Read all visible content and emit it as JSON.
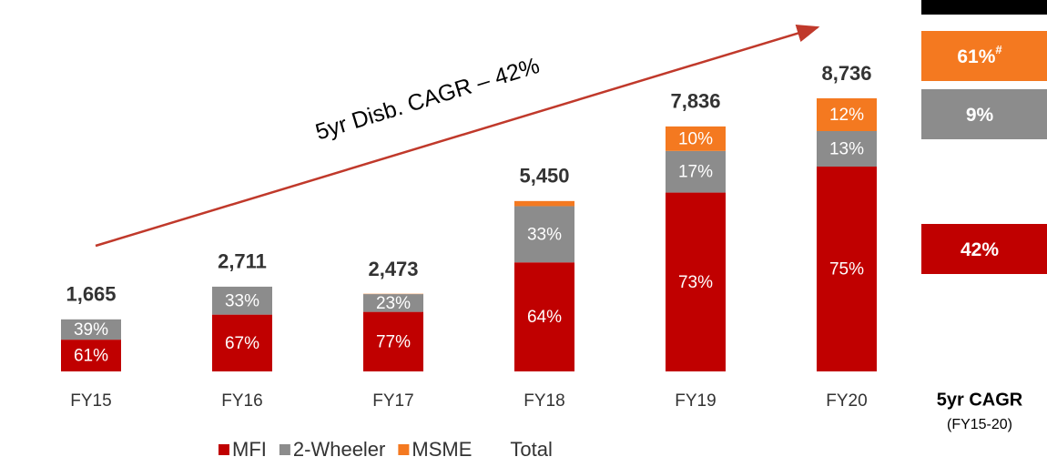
{
  "chart_data": {
    "type": "bar",
    "stacked": true,
    "categories": [
      "FY15",
      "FY16",
      "FY17",
      "FY18",
      "FY19",
      "FY20"
    ],
    "series": [
      {
        "name": "MFI",
        "color": "#c00000",
        "values": [
          61,
          67,
          77,
          64,
          73,
          75
        ],
        "value_labels": [
          "61%",
          "67%",
          "77%",
          "64%",
          "73%",
          "75%"
        ]
      },
      {
        "name": "2-Wheeler",
        "color": "#8c8c8c",
        "values": [
          39,
          33,
          23,
          33,
          17,
          13
        ],
        "value_labels": [
          "39%",
          "33%",
          "23%",
          "33%",
          "17%",
          "13%"
        ]
      },
      {
        "name": "MSME",
        "color": "#f47920",
        "values": [
          null,
          null,
          0.4,
          3,
          10,
          12
        ],
        "value_labels": [
          null,
          null,
          null,
          null,
          "10%",
          "12%"
        ]
      }
    ],
    "total": {
      "name": "Total",
      "values": [
        1665,
        2711,
        2473,
        5450,
        7836,
        8736
      ],
      "value_labels": [
        "1,665",
        "2,711",
        "2,473",
        "5,450",
        "7,836",
        "8,736"
      ]
    },
    "annotation": "5yr Disb. CAGR – 42%",
    "cagr": {
      "title": "5yr CAGR",
      "period": "(FY15-20)",
      "boxes": [
        {
          "label": "61%",
          "note": "#",
          "color": "#f47920"
        },
        {
          "label": "9%",
          "color": "#8c8c8c"
        },
        {
          "label": "42%",
          "color": "#c00000"
        }
      ]
    }
  }
}
